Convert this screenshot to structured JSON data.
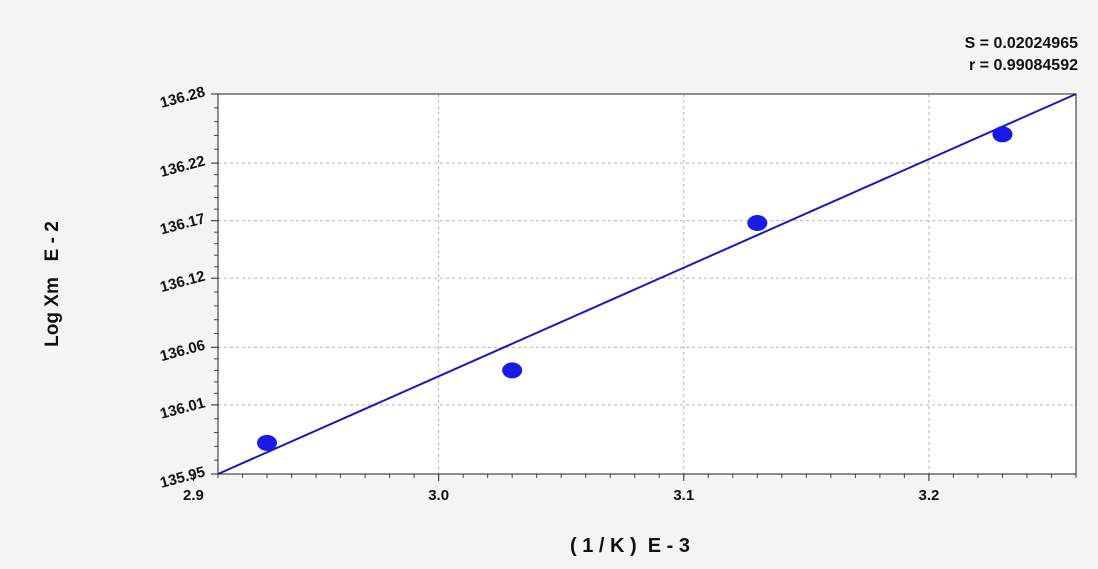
{
  "chart_data": {
    "type": "scatter",
    "title": "",
    "xlabel": "( 1 / K )  E - 3",
    "ylabel": "Log Xm   E - 2",
    "stats": [
      "S = 0.02024965",
      "r = 0.99084592"
    ],
    "xlim": [
      2.9,
      3.26
    ],
    "ylim": [
      135.95,
      136.28
    ],
    "x_ticks": [
      {
        "value": 2.9,
        "label": "2.9"
      },
      {
        "value": 3.0,
        "label": "3.0"
      },
      {
        "value": 3.1,
        "label": "3.1"
      },
      {
        "value": 3.2,
        "label": "3.2"
      }
    ],
    "y_ticks": [
      {
        "value": 135.95,
        "label": "135.95"
      },
      {
        "value": 136.01,
        "label": "136.01"
      },
      {
        "value": 136.06,
        "label": "136.06"
      },
      {
        "value": 136.12,
        "label": "136.12"
      },
      {
        "value": 136.17,
        "label": "136.17"
      },
      {
        "value": 136.22,
        "label": "136.22"
      },
      {
        "value": 136.28,
        "label": "136.28"
      }
    ],
    "points": {
      "x": [
        2.93,
        3.03,
        3.13,
        3.23
      ],
      "y": [
        135.977,
        136.04,
        136.168,
        136.245
      ]
    },
    "fit_line": {
      "x": [
        2.91,
        3.26
      ],
      "y": [
        135.95,
        136.28
      ]
    },
    "grid": true,
    "colors": {
      "points": "#1a1ae6",
      "line": "#1a1ab8",
      "grid": "#b5b5b5",
      "plot_bg": "#ffffff",
      "page_bg": "#f4f4f4"
    }
  }
}
